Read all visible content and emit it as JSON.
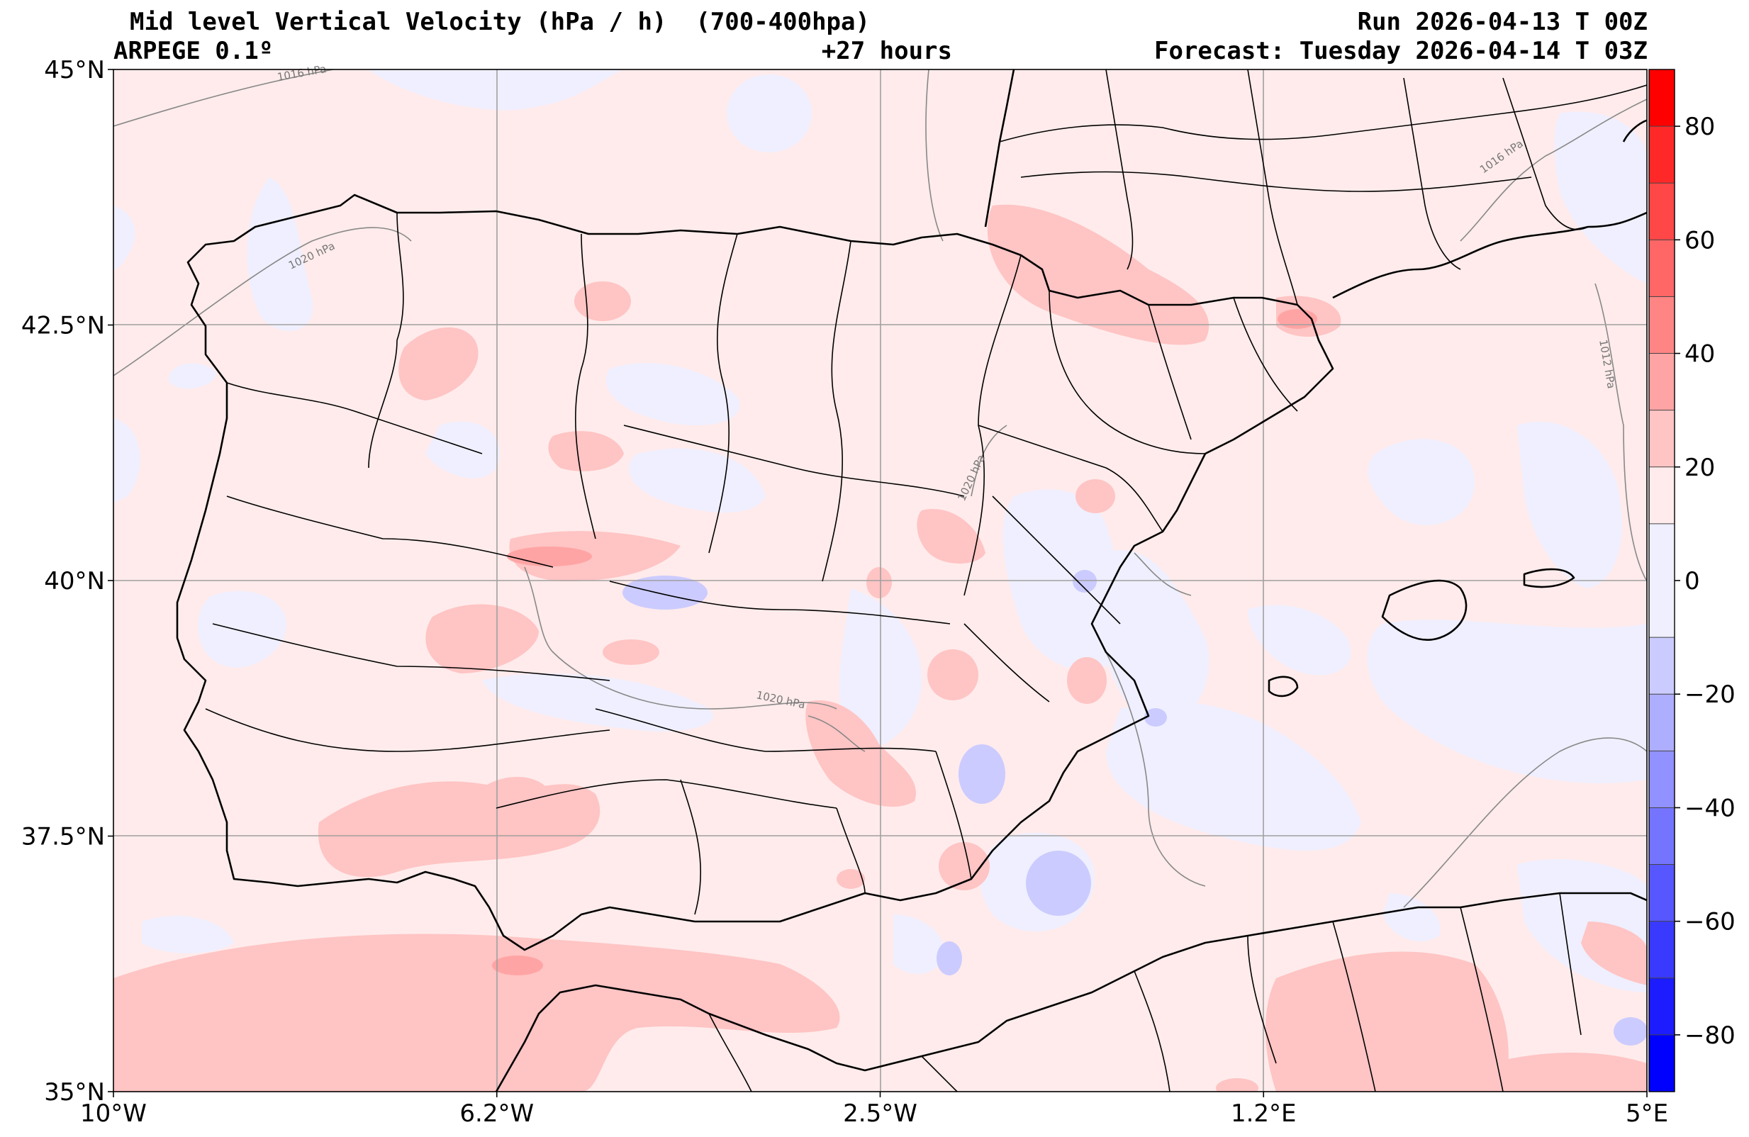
{
  "header": {
    "title": "Mid level Vertical Velocity (hPa / h)  (700-400hpa)",
    "model": "ARPEGE 0.1º",
    "lead_time": "+27 hours",
    "run": "Run 2026-04-13 T 00Z",
    "forecast": "Forecast: Tuesday 2026-04-14 T 03Z"
  },
  "axes": {
    "lat_ticks": [
      "45°N",
      "42.5°N",
      "40°N",
      "37.5°N",
      "35°N"
    ],
    "lon_ticks": [
      "10°W",
      "6.2°W",
      "2.5°W",
      "1.2°E",
      "5°E"
    ],
    "lat_values": [
      45,
      42.5,
      40,
      37.5,
      35
    ],
    "lon_values": [
      -10,
      -6.25,
      -2.5,
      1.25,
      5
    ],
    "lat_range": [
      35,
      45
    ],
    "lon_range": [
      -10,
      5
    ],
    "grid": true
  },
  "colorbar": {
    "tick_labels": [
      "80",
      "60",
      "40",
      "20",
      "0",
      "−20",
      "−40",
      "−60",
      "−80"
    ],
    "range": [
      -90,
      90
    ],
    "levels": [
      -90,
      -80,
      -70,
      -60,
      -50,
      -40,
      -30,
      -20,
      -10,
      10,
      20,
      30,
      40,
      50,
      60,
      70,
      80,
      90
    ],
    "colors": [
      "#0000ff",
      "#1c1cff",
      "#3a3aff",
      "#5757ff",
      "#7474ff",
      "#9191ff",
      "#aeaeff",
      "#cbcbff",
      "#efefff",
      "#ffebeb",
      "#ffc4c4",
      "#ffa4a4",
      "#ff8585",
      "#ff6666",
      "#ff4747",
      "#ff2828",
      "#ff0000"
    ]
  },
  "isobars": [
    "1016 hPa",
    "1020 hPa",
    "1016 hPa",
    "1012 hPa",
    "1020 hPa",
    "1020 hPa"
  ],
  "colors": {
    "background_field": "#ffebeb",
    "weak_ascent": "#efefff",
    "moderate_ascent": "#cbcbff",
    "weak_descent": "#ffc4c4",
    "coastline": "#000000",
    "isobar": "#888888",
    "grid": "#a0a0a0"
  }
}
